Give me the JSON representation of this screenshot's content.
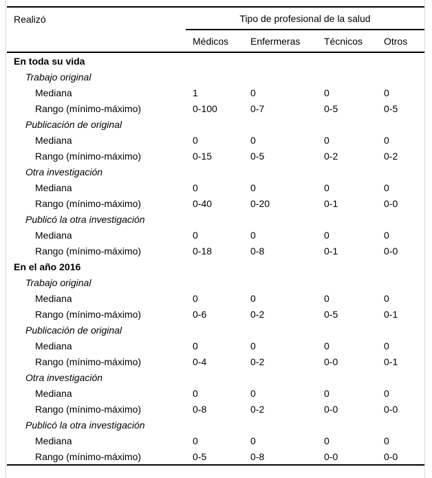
{
  "colors": {
    "text": "#000000",
    "background": "#ffffff",
    "rule": "#000000",
    "page_edge": "#d9d9d9"
  },
  "table": {
    "row_header_label": "Realizó",
    "col_group_label": "Tipo de profesional de la salud",
    "columns": [
      "Médicos",
      "Enfermeras",
      "Técnicos",
      "Otros"
    ],
    "sections": [
      {
        "label": "En toda su vida",
        "subsections": [
          {
            "label": "Trabajo original",
            "rows": [
              {
                "label": "Mediana",
                "values": [
                  "1",
                  "0",
                  "0",
                  "0"
                ]
              },
              {
                "label": "Rango (mínimo-máximo)",
                "values": [
                  "0-100",
                  "0-7",
                  "0-5",
                  "0-5"
                ]
              }
            ]
          },
          {
            "label": "Publicación de original",
            "rows": [
              {
                "label": "Mediana",
                "values": [
                  "0",
                  "0",
                  "0",
                  "0"
                ]
              },
              {
                "label": "Rango (mínimo-máximo)",
                "values": [
                  "0-15",
                  "0-5",
                  "0-2",
                  "0-2"
                ]
              }
            ]
          },
          {
            "label": "Otra investigación",
            "rows": [
              {
                "label": "Mediana",
                "values": [
                  "0",
                  "0",
                  "0",
                  "0"
                ]
              },
              {
                "label": "Rango (mínimo-máximo)",
                "values": [
                  "0-40",
                  "0-20",
                  "0-1",
                  "0-0"
                ]
              }
            ]
          },
          {
            "label": "Publicó la otra investigación",
            "rows": [
              {
                "label": "Mediana",
                "values": [
                  "0",
                  "0",
                  "0",
                  "0"
                ]
              },
              {
                "label": "Rango (mínimo-máximo)",
                "values": [
                  "0-18",
                  "0-8",
                  "0-1",
                  "0-0"
                ]
              }
            ]
          }
        ]
      },
      {
        "label": "En el año 2016",
        "subsections": [
          {
            "label": "Trabajo original",
            "rows": [
              {
                "label": "Mediana",
                "values": [
                  "0",
                  "0",
                  "0",
                  "0"
                ]
              },
              {
                "label": "Rango (mínimo-máximo)",
                "values": [
                  "0-6",
                  "0-2",
                  "0-5",
                  "0-1"
                ]
              }
            ]
          },
          {
            "label": "Publicación de original",
            "rows": [
              {
                "label": "Mediana",
                "values": [
                  "0",
                  "0",
                  "0",
                  "0"
                ]
              },
              {
                "label": "Rango (mínimo-máximo)",
                "values": [
                  "0-4",
                  "0-2",
                  "0-0",
                  "0-1"
                ]
              }
            ]
          },
          {
            "label": "Otra investigación",
            "rows": [
              {
                "label": "Mediana",
                "values": [
                  "0",
                  "0",
                  "0",
                  "0"
                ]
              },
              {
                "label": "Rango (mínimo-máximo)",
                "values": [
                  "0-8",
                  "0-2",
                  "0-0",
                  "0-0"
                ]
              }
            ]
          },
          {
            "label": "Publicó la otra investigación",
            "rows": [
              {
                "label": "Mediana",
                "values": [
                  "0",
                  "0",
                  "0",
                  "0"
                ]
              },
              {
                "label": "Rango (mínimo-máximo)",
                "values": [
                  "0-5",
                  "0-8",
                  "0-0",
                  "0-0"
                ]
              }
            ]
          }
        ]
      }
    ]
  }
}
